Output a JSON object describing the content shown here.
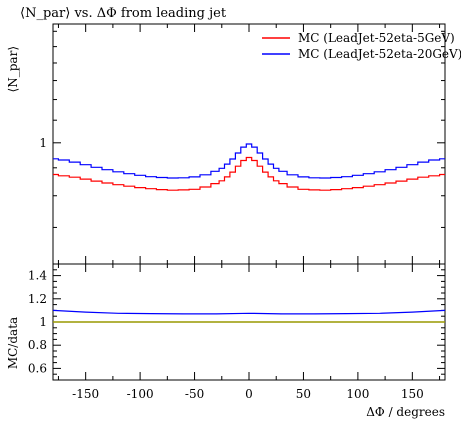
{
  "chart_data": [
    {
      "type": "line",
      "title": "⟨N_par⟩ vs. ΔΦ from leading jet",
      "ylabel": "⟨N_par⟩",
      "xlim": [
        -180,
        180
      ],
      "ylim_log": [
        0.6,
        1.65
      ],
      "y_scale": "log",
      "yticks": [
        {
          "value": 1,
          "label": "1"
        }
      ],
      "legend_position": "top-right",
      "x": [
        -180,
        -170,
        -160,
        -150,
        -140,
        -130,
        -120,
        -110,
        -100,
        -90,
        -80,
        -70,
        -60,
        -50,
        -40,
        -30,
        -25,
        -20,
        -15,
        -10,
        -5,
        0,
        5,
        10,
        15,
        20,
        25,
        30,
        40,
        50,
        60,
        70,
        80,
        90,
        100,
        110,
        120,
        130,
        140,
        150,
        160,
        170,
        180
      ],
      "series": [
        {
          "name": "MC (LeadJet-52eta-5GeV)",
          "color": "#ff0000",
          "values": [
            0.875,
            0.87,
            0.865,
            0.858,
            0.851,
            0.844,
            0.838,
            0.833,
            0.828,
            0.824,
            0.821,
            0.819,
            0.82,
            0.822,
            0.83,
            0.842,
            0.852,
            0.866,
            0.884,
            0.906,
            0.928,
            0.94,
            0.928,
            0.906,
            0.884,
            0.866,
            0.852,
            0.842,
            0.83,
            0.822,
            0.82,
            0.819,
            0.821,
            0.824,
            0.828,
            0.833,
            0.838,
            0.844,
            0.851,
            0.858,
            0.865,
            0.87,
            0.875
          ]
        },
        {
          "name": "MC (LeadJet-52eta-20GeV)",
          "color": "#0000ff",
          "values": [
            0.935,
            0.93,
            0.922,
            0.912,
            0.902,
            0.893,
            0.885,
            0.878,
            0.872,
            0.867,
            0.864,
            0.862,
            0.863,
            0.866,
            0.874,
            0.887,
            0.898,
            0.914,
            0.934,
            0.958,
            0.982,
            0.995,
            0.982,
            0.958,
            0.934,
            0.914,
            0.898,
            0.887,
            0.874,
            0.866,
            0.863,
            0.862,
            0.864,
            0.867,
            0.872,
            0.878,
            0.885,
            0.893,
            0.902,
            0.912,
            0.922,
            0.93,
            0.935
          ]
        }
      ]
    },
    {
      "type": "line",
      "ylabel": "MC/data",
      "xlabel": "ΔΦ / degrees",
      "xlim": [
        -180,
        180
      ],
      "ylim": [
        0.5,
        1.5
      ],
      "xticks": [
        {
          "value": -150,
          "label": "-150"
        },
        {
          "value": -100,
          "label": "-100"
        },
        {
          "value": -50,
          "label": "-50"
        },
        {
          "value": 0,
          "label": "0"
        },
        {
          "value": 50,
          "label": "50"
        },
        {
          "value": 100,
          "label": "100"
        },
        {
          "value": 150,
          "label": "150"
        }
      ],
      "yticks": [
        {
          "value": 0.6,
          "label": "0.6"
        },
        {
          "value": 0.8,
          "label": "0.8"
        },
        {
          "value": 1.0,
          "label": "1"
        },
        {
          "value": 1.2,
          "label": "1.2"
        },
        {
          "value": 1.4,
          "label": "1.4"
        }
      ],
      "reference_line": {
        "value": 1.0,
        "color": "#999900"
      },
      "x": [
        -180,
        -150,
        -120,
        -90,
        -60,
        -30,
        0,
        30,
        60,
        90,
        120,
        150,
        180
      ],
      "series": [
        {
          "color": "#0000ff",
          "values": [
            1.1,
            1.085,
            1.075,
            1.072,
            1.07,
            1.07,
            1.075,
            1.07,
            1.07,
            1.072,
            1.075,
            1.085,
            1.1
          ]
        }
      ]
    }
  ]
}
